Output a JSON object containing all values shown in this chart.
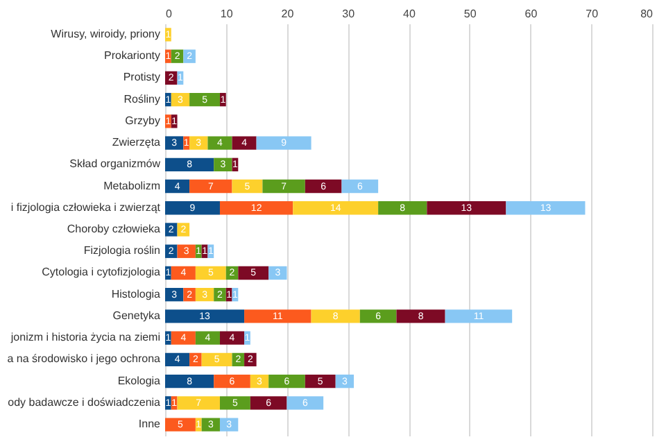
{
  "chart_data": {
    "type": "bar",
    "orientation": "horizontal",
    "stacked": true,
    "data_labels": true,
    "grid": true,
    "legend": false,
    "categories": [
      "Wirusy, wiroidy, priony",
      "Prokarionty",
      "Protisty",
      "Rośliny",
      "Grzyby",
      "Zwierzęta",
      "Skład organizmów",
      "Metabolizm",
      "i fizjologia człowieka i zwierząt",
      "Choroby człowieka",
      "Fizjologia roślin",
      "Cytologia i cytofizjologia",
      "Histologia",
      "Genetyka",
      "jonizm i historia życia na ziemi",
      "a na środowisko i jego ochrona",
      "Ekologia",
      "ody badawcze i doświadczenia",
      "Inne"
    ],
    "xlim": [
      0,
      80
    ],
    "xticks": [
      0,
      10,
      20,
      30,
      40,
      50,
      60,
      70,
      80
    ],
    "series": [
      {
        "color": "#0d4f8b",
        "values": [
          null,
          null,
          null,
          1,
          null,
          3,
          8,
          4,
          9,
          2,
          2,
          1,
          3,
          13,
          1,
          4,
          8,
          1,
          null
        ]
      },
      {
        "color": "#fc5a1e",
        "values": [
          null,
          1,
          null,
          null,
          1,
          1,
          null,
          7,
          12,
          null,
          3,
          4,
          2,
          11,
          4,
          2,
          6,
          1,
          5
        ]
      },
      {
        "color": "#fdd02c",
        "values": [
          1,
          null,
          null,
          3,
          null,
          3,
          null,
          5,
          14,
          2,
          null,
          5,
          3,
          8,
          null,
          5,
          3,
          7,
          1
        ]
      },
      {
        "color": "#5b9d1d",
        "values": [
          null,
          2,
          null,
          5,
          null,
          4,
          3,
          7,
          8,
          null,
          1,
          2,
          2,
          6,
          4,
          2,
          6,
          5,
          3
        ]
      },
      {
        "color": "#7d0a25",
        "values": [
          null,
          null,
          2,
          1,
          1,
          4,
          1,
          6,
          13,
          null,
          1,
          5,
          1,
          8,
          4,
          2,
          5,
          6,
          null
        ]
      },
      {
        "color": "#88c7f4",
        "values": [
          null,
          2,
          1,
          null,
          null,
          9,
          null,
          6,
          13,
          null,
          1,
          3,
          1,
          11,
          1,
          null,
          3,
          6,
          3
        ]
      }
    ]
  }
}
